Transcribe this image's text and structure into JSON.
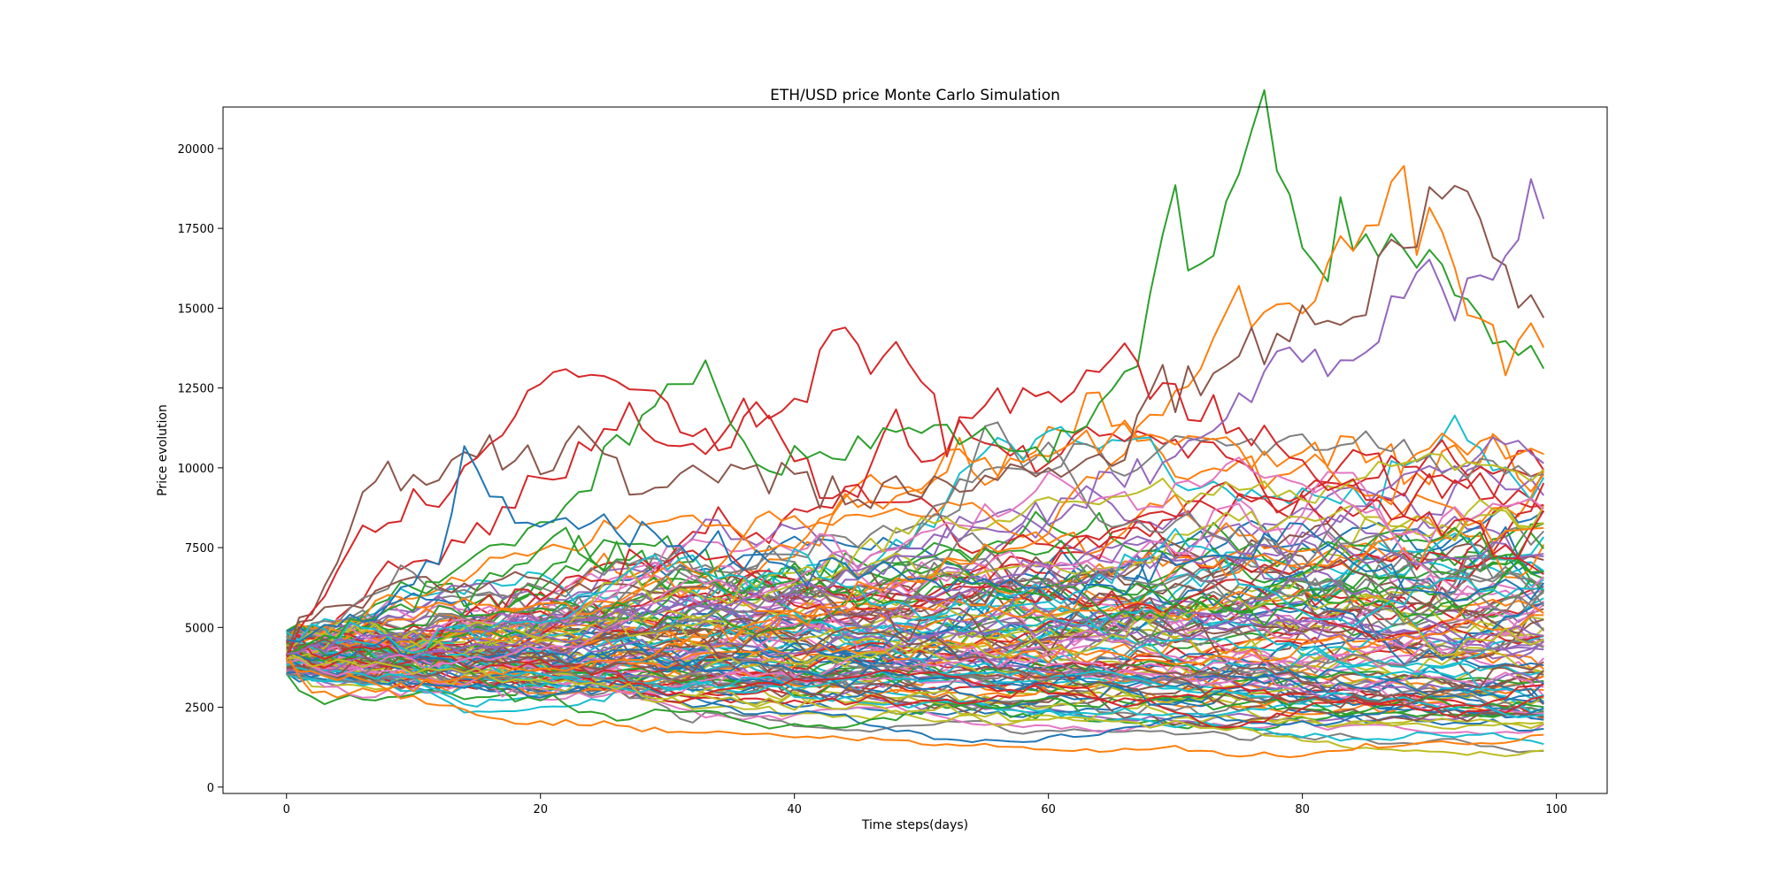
{
  "chart_data": {
    "type": "line",
    "title": "ETH/USD price Monte Carlo Simulation",
    "xlabel": "Time steps(days)",
    "ylabel": "Price evolution",
    "xlim": [
      -5,
      104
    ],
    "ylim": [
      -200,
      21300
    ],
    "x_ticks": [
      0,
      20,
      40,
      60,
      80,
      100
    ],
    "y_ticks": [
      0,
      2500,
      5000,
      7500,
      10000,
      12500,
      15000,
      17500,
      20000
    ],
    "grid": false,
    "legend": "none",
    "n_days": 100,
    "initial_price_range": [
      3500,
      4900
    ],
    "palette": [
      "#1f77b4",
      "#ff7f0e",
      "#2ca02c",
      "#d62728",
      "#9467bd",
      "#8c564b",
      "#e377c2",
      "#7f7f7f",
      "#bcbd22",
      "#17becf"
    ],
    "simulated_path_count": 120,
    "highlighted_paths": [
      {
        "color": "#2ca02c",
        "keypoints": [
          [
            0,
            4200
          ],
          [
            10,
            6000
          ],
          [
            22,
            8800
          ],
          [
            30,
            12200
          ],
          [
            33,
            12800
          ],
          [
            38,
            10000
          ],
          [
            50,
            11500
          ],
          [
            60,
            10500
          ],
          [
            66,
            12200
          ],
          [
            70,
            17500
          ],
          [
            72,
            15800
          ],
          [
            74,
            18200
          ],
          [
            77,
            20300
          ],
          [
            80,
            16200
          ],
          [
            83,
            17500
          ],
          [
            86,
            16600
          ],
          [
            90,
            17100
          ],
          [
            95,
            14000
          ],
          [
            99,
            13300
          ]
        ]
      },
      {
        "color": "#ff7f0e",
        "keypoints": [
          [
            0,
            4000
          ],
          [
            2,
            2900
          ],
          [
            10,
            3200
          ],
          [
            30,
            4200
          ],
          [
            50,
            6500
          ],
          [
            60,
            8000
          ],
          [
            70,
            12400
          ],
          [
            75,
            15200
          ],
          [
            80,
            15100
          ],
          [
            85,
            17500
          ],
          [
            87,
            18900
          ],
          [
            90,
            17300
          ],
          [
            92,
            16600
          ],
          [
            96,
            13400
          ],
          [
            99,
            14200
          ]
        ]
      },
      {
        "color": "#8c564b",
        "keypoints": [
          [
            0,
            4200
          ],
          [
            7,
            9500
          ],
          [
            12,
            9700
          ],
          [
            15,
            10700
          ],
          [
            20,
            10000
          ],
          [
            23,
            11400
          ],
          [
            28,
            9400
          ],
          [
            35,
            10000
          ],
          [
            45,
            9000
          ],
          [
            55,
            9500
          ],
          [
            65,
            10500
          ],
          [
            70,
            12800
          ],
          [
            74,
            13000
          ],
          [
            80,
            14900
          ],
          [
            85,
            15000
          ],
          [
            90,
            18600
          ],
          [
            94,
            18600
          ],
          [
            97,
            15000
          ],
          [
            99,
            14800
          ]
        ]
      },
      {
        "color": "#d62728",
        "keypoints": [
          [
            0,
            4000
          ],
          [
            6,
            8300
          ],
          [
            12,
            9300
          ],
          [
            18,
            11300
          ],
          [
            21,
            12900
          ],
          [
            24,
            13000
          ],
          [
            28,
            12200
          ],
          [
            34,
            10800
          ],
          [
            40,
            11800
          ],
          [
            43,
            13700
          ],
          [
            48,
            13400
          ],
          [
            52,
            10700
          ],
          [
            58,
            12500
          ],
          [
            62,
            12800
          ],
          [
            66,
            13800
          ],
          [
            68,
            12500
          ],
          [
            75,
            11000
          ],
          [
            85,
            9000
          ],
          [
            95,
            7500
          ],
          [
            99,
            8400
          ]
        ]
      },
      {
        "color": "#9467bd",
        "keypoints": [
          [
            0,
            4300
          ],
          [
            20,
            5200
          ],
          [
            40,
            6000
          ],
          [
            55,
            8000
          ],
          [
            60,
            8600
          ],
          [
            70,
            10500
          ],
          [
            80,
            13600
          ],
          [
            85,
            13200
          ],
          [
            89,
            16400
          ],
          [
            92,
            15000
          ],
          [
            96,
            16800
          ],
          [
            99,
            18900
          ]
        ]
      },
      {
        "color": "#1f77b4",
        "keypoints": [
          [
            0,
            4500
          ],
          [
            7,
            5500
          ],
          [
            12,
            7000
          ],
          [
            14,
            10400
          ],
          [
            16,
            9200
          ],
          [
            20,
            8600
          ],
          [
            30,
            7500
          ],
          [
            40,
            7000
          ],
          [
            50,
            6500
          ],
          [
            60,
            6000
          ],
          [
            70,
            7000
          ],
          [
            80,
            8000
          ],
          [
            90,
            6000
          ],
          [
            99,
            6200
          ]
        ]
      },
      {
        "color": "#bcbd22",
        "keypoints": [
          [
            0,
            4100
          ],
          [
            10,
            3800
          ],
          [
            20,
            3300
          ],
          [
            40,
            2600
          ],
          [
            60,
            2200
          ],
          [
            75,
            1800
          ],
          [
            80,
            1500
          ],
          [
            85,
            1200
          ],
          [
            90,
            1100
          ],
          [
            96,
            1000
          ],
          [
            99,
            1100
          ]
        ]
      },
      {
        "color": "#ff7f0e",
        "keypoints": [
          [
            0,
            3900
          ],
          [
            15,
            2200
          ],
          [
            20,
            2000
          ],
          [
            30,
            1800
          ],
          [
            40,
            1600
          ],
          [
            55,
            1300
          ],
          [
            60,
            1150
          ],
          [
            70,
            1200
          ],
          [
            75,
            1000
          ],
          [
            80,
            950
          ],
          [
            85,
            1300
          ],
          [
            90,
            1400
          ],
          [
            95,
            1400
          ],
          [
            99,
            1600
          ]
        ]
      }
    ]
  }
}
